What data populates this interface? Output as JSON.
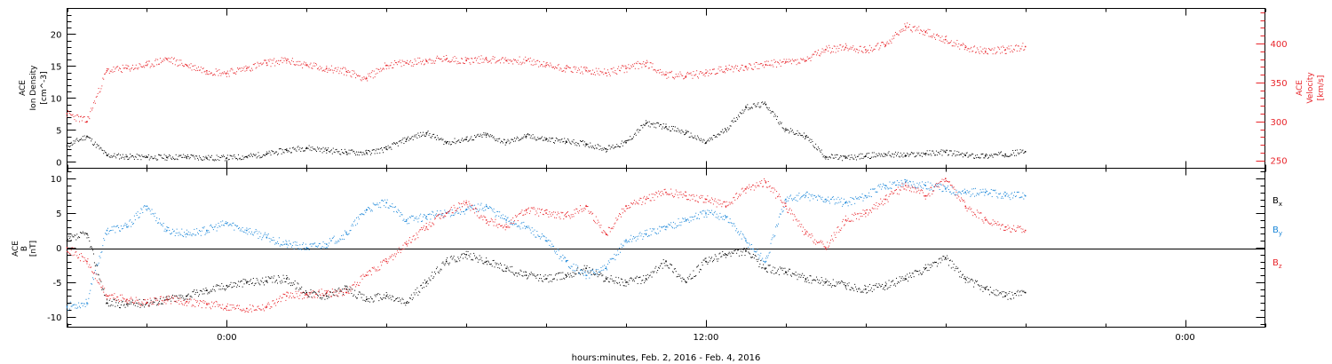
{
  "colors": {
    "black": "#000000",
    "red": "#e8242a",
    "blue": "#1a86d8",
    "background": "#ffffff"
  },
  "x_axis": {
    "xlabel": "hours:minutes, Feb.  2, 2016 - Feb.  4, 2016",
    "range_hours": [
      -4,
      26
    ],
    "major_ticks": [
      0,
      12,
      24
    ],
    "tick_labels": [
      "0:00",
      "12:00",
      "0:00"
    ],
    "minor_tick_step_hours": 2
  },
  "chart_data": [
    {
      "type": "scatter",
      "panel": "top",
      "ylabel_left": [
        "ACE",
        "Ion Density",
        "[cm^-3]"
      ],
      "ylabel_right": [
        "ACE",
        "Velocity",
        "[km/s]"
      ],
      "y_left_range": [
        -1,
        24
      ],
      "y_left_ticks": [
        0,
        5,
        10,
        15,
        20
      ],
      "y_left_tick_labels": [
        "0",
        "5",
        "10",
        "15",
        "20"
      ],
      "y_right_range": [
        240,
        445
      ],
      "y_right_ticks": [
        250,
        300,
        350,
        400
      ],
      "y_right_tick_labels": [
        "250",
        "300",
        "350",
        "400"
      ],
      "x_unit": "hours",
      "series": [
        {
          "color": "#000000",
          "axis": "left",
          "x": [
            -4.0,
            -3.5,
            -3.0,
            -2.5,
            -2.0,
            -1.5,
            -1.0,
            -0.5,
            0.0,
            0.5,
            1.0,
            1.5,
            2.0,
            2.5,
            3.0,
            3.5,
            4.0,
            4.5,
            5.0,
            5.5,
            6.0,
            6.5,
            7.0,
            7.5,
            8.0,
            8.5,
            9.0,
            9.5,
            10.0,
            10.5,
            11.0,
            11.5,
            12.0,
            12.5,
            13.0,
            13.5,
            14.0,
            14.5,
            15.0,
            15.5,
            16.0,
            16.5,
            17.0,
            17.5,
            18.0,
            18.5,
            19.0,
            19.5,
            20.0
          ],
          "y": [
            2.5,
            4.0,
            1.0,
            0.8,
            0.7,
            0.7,
            0.8,
            0.6,
            0.6,
            0.8,
            1.2,
            1.8,
            2.2,
            1.8,
            1.5,
            1.4,
            2.0,
            3.5,
            4.5,
            3.0,
            3.5,
            4.2,
            3.0,
            4.0,
            3.5,
            3.2,
            2.8,
            2.0,
            3.0,
            6.0,
            5.5,
            4.5,
            3.0,
            5.0,
            8.5,
            9.0,
            5.0,
            4.0,
            0.8,
            0.6,
            0.9,
            1.2,
            1.0,
            1.3,
            1.5,
            1.0,
            0.9,
            1.2,
            1.6
          ]
        },
        {
          "color": "#e8242a",
          "axis": "right",
          "x": [
            -4.0,
            -3.5,
            -3.0,
            -2.5,
            -2.0,
            -1.5,
            -1.0,
            -0.5,
            0.0,
            0.5,
            1.0,
            1.5,
            2.0,
            2.5,
            3.0,
            3.5,
            4.0,
            4.5,
            5.0,
            5.5,
            6.0,
            6.5,
            7.0,
            7.5,
            8.0,
            8.5,
            9.0,
            9.5,
            10.0,
            10.5,
            11.0,
            11.5,
            12.0,
            12.5,
            13.0,
            13.5,
            14.0,
            14.5,
            15.0,
            15.5,
            16.0,
            16.5,
            17.0,
            17.5,
            18.0,
            18.5,
            19.0,
            19.5,
            20.0
          ],
          "y": [
            310,
            300,
            365,
            368,
            372,
            380,
            372,
            365,
            362,
            368,
            375,
            378,
            372,
            368,
            364,
            355,
            372,
            375,
            378,
            380,
            378,
            380,
            378,
            378,
            372,
            368,
            365,
            362,
            368,
            375,
            360,
            358,
            362,
            367,
            370,
            373,
            376,
            378,
            392,
            395,
            392,
            398,
            422,
            415,
            405,
            395,
            390,
            392,
            396
          ]
        }
      ]
    },
    {
      "type": "scatter",
      "panel": "bottom",
      "ylabel_left": [
        "ACE",
        "B",
        "[nT]"
      ],
      "y_range": [
        -11.5,
        11.5
      ],
      "y_ticks": [
        -10,
        -5,
        0,
        5,
        10
      ],
      "y_tick_labels": [
        "-10",
        "-5",
        "0",
        "5",
        "10"
      ],
      "x_unit": "hours",
      "series": [
        {
          "name": "B_x",
          "color": "#000000",
          "x": [
            -4.0,
            -3.5,
            -3.0,
            -2.5,
            -2.0,
            -1.5,
            -1.0,
            -0.5,
            0.0,
            0.5,
            1.0,
            1.5,
            2.0,
            2.5,
            3.0,
            3.5,
            4.0,
            4.5,
            5.0,
            5.5,
            6.0,
            6.5,
            7.0,
            7.5,
            8.0,
            8.5,
            9.0,
            9.5,
            10.0,
            10.5,
            11.0,
            11.5,
            12.0,
            12.5,
            13.0,
            13.5,
            14.0,
            14.5,
            15.0,
            15.5,
            16.0,
            16.5,
            17.0,
            17.5,
            18.0,
            18.5,
            19.0,
            19.5,
            20.0
          ],
          "y": [
            1.0,
            2.0,
            -8.0,
            -8.2,
            -8.0,
            -7.5,
            -7.0,
            -6.2,
            -5.5,
            -5.0,
            -4.8,
            -4.5,
            -6.5,
            -7.0,
            -6.0,
            -7.5,
            -7.0,
            -8.0,
            -5.0,
            -2.0,
            -1.0,
            -2.0,
            -3.0,
            -4.0,
            -4.5,
            -4.0,
            -3.0,
            -4.5,
            -5.0,
            -4.5,
            -2.0,
            -5.0,
            -2.0,
            -1.0,
            -0.5,
            -3.0,
            -3.5,
            -4.5,
            -5.0,
            -5.5,
            -6.0,
            -5.5,
            -4.5,
            -3.0,
            -1.5,
            -4.5,
            -6.0,
            -7.0,
            -6.5
          ]
        },
        {
          "name": "B_y",
          "color": "#1a86d8",
          "x": [
            -4.0,
            -3.5,
            -3.0,
            -2.5,
            -2.0,
            -1.5,
            -1.0,
            -0.5,
            0.0,
            0.5,
            1.0,
            1.5,
            2.0,
            2.5,
            3.0,
            3.5,
            4.0,
            4.5,
            5.0,
            5.5,
            6.0,
            6.5,
            7.0,
            7.5,
            8.0,
            8.5,
            9.0,
            9.5,
            10.0,
            10.5,
            11.0,
            11.5,
            12.0,
            12.5,
            13.0,
            13.5,
            14.0,
            14.5,
            15.0,
            15.5,
            16.0,
            16.5,
            17.0,
            17.5,
            18.0,
            18.5,
            19.0,
            19.5,
            20.0
          ],
          "y": [
            -8.5,
            -8.0,
            2.5,
            3.0,
            6.0,
            2.5,
            2.0,
            2.5,
            3.5,
            2.5,
            1.5,
            0.5,
            0.0,
            0.5,
            2.0,
            5.5,
            6.5,
            4.0,
            4.5,
            5.0,
            5.5,
            6.0,
            4.0,
            3.0,
            1.0,
            -2.0,
            -4.0,
            -3.0,
            1.0,
            2.0,
            3.0,
            4.0,
            5.0,
            4.5,
            1.0,
            -2.0,
            7.0,
            7.5,
            7.0,
            6.5,
            7.5,
            9.0,
            9.5,
            9.0,
            8.5,
            8.0,
            8.0,
            7.5,
            7.5
          ]
        },
        {
          "name": "B_z",
          "color": "#e8242a",
          "x": [
            -4.0,
            -3.5,
            -3.0,
            -2.5,
            -2.0,
            -1.5,
            -1.0,
            -0.5,
            0.0,
            0.5,
            1.0,
            1.5,
            2.0,
            2.5,
            3.0,
            3.5,
            4.0,
            4.5,
            5.0,
            5.5,
            6.0,
            6.5,
            7.0,
            7.5,
            8.0,
            8.5,
            9.0,
            9.5,
            10.0,
            10.5,
            11.0,
            11.5,
            12.0,
            12.5,
            13.0,
            13.5,
            14.0,
            14.5,
            15.0,
            15.5,
            16.0,
            16.5,
            17.0,
            17.5,
            18.0,
            18.5,
            19.0,
            19.5,
            20.0
          ],
          "y": [
            0.0,
            -2.0,
            -7.0,
            -7.5,
            -8.0,
            -7.5,
            -7.8,
            -8.2,
            -8.5,
            -8.8,
            -8.5,
            -7.0,
            -6.8,
            -6.5,
            -6.5,
            -4.0,
            -2.0,
            0.5,
            3.0,
            5.0,
            6.5,
            4.0,
            3.0,
            5.5,
            5.0,
            4.5,
            6.0,
            2.0,
            6.0,
            7.0,
            8.0,
            7.5,
            7.0,
            6.0,
            8.5,
            9.5,
            6.0,
            2.0,
            0.0,
            4.0,
            5.0,
            7.0,
            9.0,
            7.5,
            10.0,
            6.0,
            4.0,
            3.0,
            2.5
          ]
        }
      ]
    }
  ]
}
